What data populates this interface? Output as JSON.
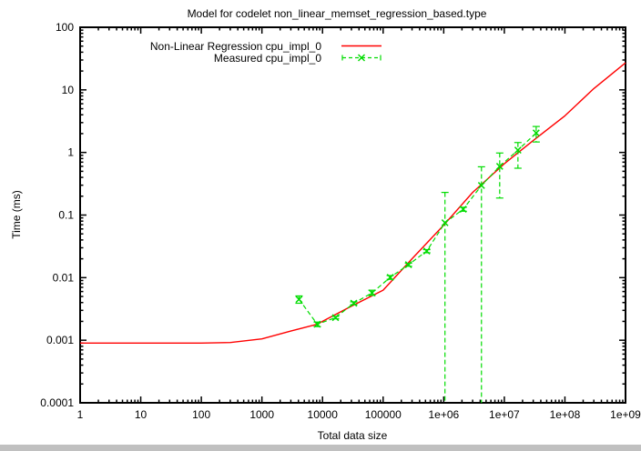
{
  "title": "Model for codelet non_linear_memset_regression_based.type",
  "x_axis": {
    "label": "Total data size",
    "ticks": [
      "1",
      "10",
      "100",
      "1000",
      "10000",
      "100000",
      "1e+06",
      "1e+07",
      "1e+08",
      "1e+09"
    ]
  },
  "y_axis": {
    "label": "Time (ms)",
    "ticks": [
      "100",
      "10",
      "1",
      "0.1",
      "0.01",
      "0.001",
      "0.0001"
    ]
  },
  "legend": [
    {
      "label": "Non-Linear Regression cpu_impl_0",
      "color": "#ff0000",
      "style": "solid"
    },
    {
      "label": "Measured cpu_impl_0",
      "color": "#00dc00",
      "style": "dashed-errorbars"
    }
  ],
  "chart_data": {
    "type": "line",
    "x_scale": "log",
    "y_scale": "log",
    "x_range": [
      1,
      1000000000
    ],
    "y_range": [
      0.0001,
      100
    ],
    "x_exp_range": [
      0,
      9
    ],
    "y_exp_range": [
      -4,
      2
    ],
    "grid": false,
    "legend_position": "top-center-inside",
    "series": [
      {
        "name": "Non-Linear Regression cpu_impl_0",
        "color": "#ff0000",
        "style": "solid",
        "points": [
          [
            1,
            0.0009
          ],
          [
            3,
            0.0009
          ],
          [
            10,
            0.0009
          ],
          [
            30,
            0.0009
          ],
          [
            100,
            0.0009
          ],
          [
            300,
            0.00092
          ],
          [
            1000,
            0.00105
          ],
          [
            3000,
            0.0014
          ],
          [
            8192,
            0.0018
          ],
          [
            10000,
            0.002
          ],
          [
            30000,
            0.0035
          ],
          [
            100000,
            0.0063
          ],
          [
            300000,
            0.02
          ],
          [
            1000000,
            0.069
          ],
          [
            3000000,
            0.23
          ],
          [
            10000000,
            0.66
          ],
          [
            30000000,
            1.55
          ],
          [
            100000000,
            3.85
          ],
          [
            300000000,
            10.5
          ],
          [
            1000000000,
            27
          ]
        ]
      },
      {
        "name": "Measured cpu_impl_0",
        "color": "#00dc00",
        "style": "dashed",
        "marker": "x",
        "points": [
          {
            "x": 4096,
            "y": 0.0045,
            "lo": 0.0039,
            "hi": 0.0051
          },
          {
            "x": 8192,
            "y": 0.0018,
            "lo": 0.00165,
            "hi": 0.00195
          },
          {
            "x": 16384,
            "y": 0.0023,
            "lo": 0.0022,
            "hi": 0.0024
          },
          {
            "x": 32768,
            "y": 0.0039,
            "lo": 0.0037,
            "hi": 0.0041
          },
          {
            "x": 65536,
            "y": 0.0057,
            "lo": 0.0052,
            "hi": 0.0063
          },
          {
            "x": 131072,
            "y": 0.0101,
            "lo": 0.0094,
            "hi": 0.0108
          },
          {
            "x": 262144,
            "y": 0.0161,
            "lo": 0.0152,
            "hi": 0.017
          },
          {
            "x": 524288,
            "y": 0.0266,
            "lo": 0.025,
            "hi": 0.028
          },
          {
            "x": 1048576,
            "y": 0.0753,
            "lo": 0.0001,
            "hi": 0.23
          },
          {
            "x": 2097152,
            "y": 0.124,
            "lo": 0.115,
            "hi": 0.133
          },
          {
            "x": 4194304,
            "y": 0.297,
            "lo": 0.0001,
            "hi": 0.59
          },
          {
            "x": 8388608,
            "y": 0.6,
            "lo": 0.187,
            "hi": 0.98
          },
          {
            "x": 16777216,
            "y": 1.09,
            "lo": 0.56,
            "hi": 1.44
          },
          {
            "x": 33554432,
            "y": 2.05,
            "lo": 1.47,
            "hi": 2.6
          }
        ]
      }
    ]
  }
}
